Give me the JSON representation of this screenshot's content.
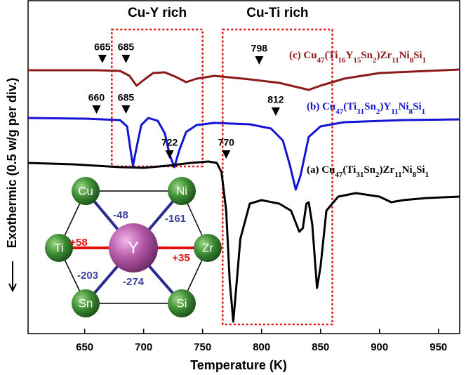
{
  "chart_data": {
    "type": "line",
    "xlabel": "Temperature (K)",
    "ylabel": "Exothermic (0.5 w/g per div.)",
    "xlim": [
      602,
      968
    ],
    "ylim": [
      0,
      475
    ],
    "xticks": [
      650,
      700,
      750,
      800,
      850,
      900,
      950
    ],
    "series": [
      {
        "name": "(c) Cu47(Ti16Y15Sn2)Zr11Ni8Si1",
        "color": "#8b1a1a",
        "x": [
          602,
          660,
          680,
          688,
          694,
          700,
          708,
          718,
          728,
          736,
          745,
          760,
          790,
          815,
          830,
          840,
          850,
          870,
          900,
          968
        ],
        "values": [
          375,
          375,
          374,
          367,
          353,
          361,
          371,
          372,
          365,
          358,
          363,
          367,
          362,
          357,
          351,
          347,
          353,
          363,
          371,
          376
        ]
      },
      {
        "name": "(b) Cu47(Ti31Sn2)Y11Ni8Si1",
        "color": "#1414d2",
        "x": [
          602,
          650,
          680,
          686,
          689,
          691,
          694,
          698,
          704,
          712,
          718,
          722,
          726,
          730,
          736,
          745,
          760,
          790,
          808,
          818,
          824,
          829,
          833,
          840,
          850,
          870,
          920,
          968
        ],
        "values": [
          307,
          306,
          304,
          295,
          260,
          239,
          265,
          297,
          307,
          303,
          285,
          255,
          237,
          260,
          287,
          297,
          300,
          298,
          292,
          275,
          240,
          205,
          225,
          280,
          295,
          301,
          304,
          305
        ]
      },
      {
        "name": "(a) Cu47(Ti31Sn2)Zr11Ni8Si1",
        "color": "#000000",
        "x": [
          602,
          640,
          680,
          700,
          720,
          740,
          755,
          762,
          766,
          770,
          773,
          776,
          778,
          782,
          790,
          800,
          815,
          825,
          832,
          835,
          838,
          840,
          843,
          847,
          850,
          855,
          865,
          880,
          900,
          910,
          920,
          940,
          968
        ],
        "values": [
          243,
          241,
          237,
          236,
          239,
          243,
          245,
          243,
          230,
          175,
          75,
          17,
          55,
          135,
          185,
          190,
          185,
          175,
          145,
          150,
          185,
          187,
          155,
          65,
          95,
          175,
          195,
          200,
          195,
          187,
          190,
          193,
          195
        ]
      }
    ],
    "markers": [
      {
        "x": 665,
        "y": 385
      },
      {
        "x": 685,
        "y": 385
      },
      {
        "x": 798,
        "y": 383
      },
      {
        "x": 660,
        "y": 313
      },
      {
        "x": 685,
        "y": 313
      },
      {
        "x": 812,
        "y": 310
      },
      {
        "x": 722,
        "y": 249
      },
      {
        "x": 770,
        "y": 249
      }
    ],
    "regions": [
      {
        "label": "Cu-Y rich",
        "x": [
          673,
          750
        ],
        "y": [
          238,
          433
        ]
      },
      {
        "label": "Cu-Ti rich",
        "x": [
          767,
          860
        ],
        "y": [
          13,
          433
        ]
      }
    ],
    "inset": {
      "center": "Y",
      "nodes": [
        "Cu",
        "Ni",
        "Ti",
        "Zr",
        "Sn",
        "Si"
      ],
      "bonds": [
        "-48",
        "-161",
        "+58",
        "+35",
        "-203",
        "-274"
      ]
    }
  }
}
